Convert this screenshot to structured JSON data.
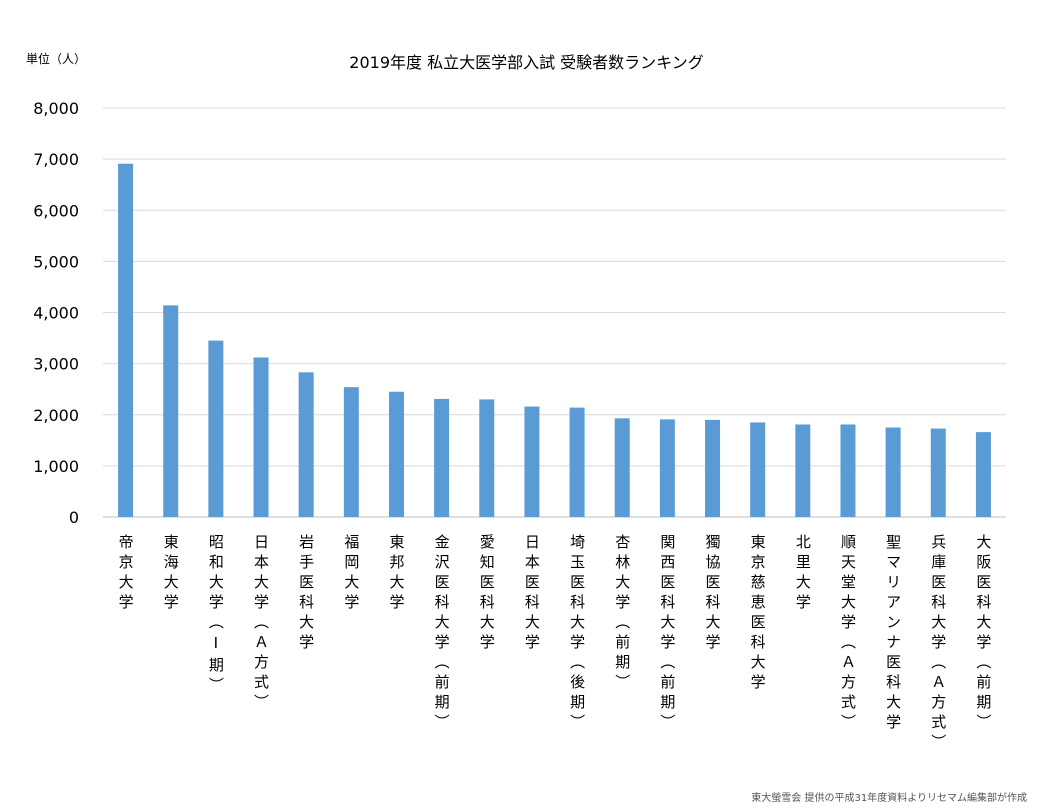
{
  "chart_data": {
    "type": "bar",
    "title": "2019年度 私立大医学部入試 受験者数ランキング",
    "unit_label": "単位（人）",
    "source_note": "東大螢雪会 提供の平成31年度資料よりリセマム編集部が作成",
    "ylim": [
      0,
      8000
    ],
    "yticks": [
      0,
      1000,
      2000,
      3000,
      4000,
      5000,
      6000,
      7000,
      8000
    ],
    "ytick_labels": [
      "0",
      "1,000",
      "2,000",
      "3,000",
      "4,000",
      "5,000",
      "6,000",
      "7,000",
      "8,000"
    ],
    "grid": true,
    "legend": "none",
    "bar_color": "#5b9bd5",
    "categories": [
      "帝京大学",
      "東海大学",
      "昭和大学（Ⅰ期）",
      "日本大学（Ａ方式）",
      "岩手医科大学",
      "福岡大学",
      "東邦大学",
      "金沢医科大学（前期）",
      "愛知医科大学",
      "日本医科大学",
      "埼玉医科大学（後期）",
      "杏林大学（前期）",
      "関西医科大学（前期）",
      "獨協医科大学",
      "東京慈恵医科大学",
      "北里大学",
      "順天堂大学（Ａ方式）",
      "聖マリアンナ医科大学",
      "兵庫医科大学（Ａ方式）",
      "大阪医科大学（前期）"
    ],
    "values": [
      6910,
      4140,
      3450,
      3120,
      2830,
      2540,
      2450,
      2310,
      2300,
      2160,
      2140,
      1930,
      1910,
      1900,
      1850,
      1810,
      1810,
      1750,
      1730,
      1660
    ]
  }
}
